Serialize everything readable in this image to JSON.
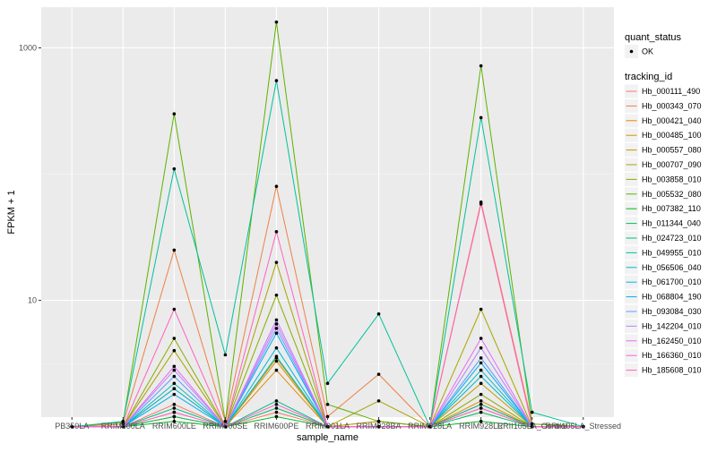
{
  "chart_data": {
    "type": "line",
    "title": "",
    "xlabel": "sample_name",
    "ylabel": "FPKM + 1",
    "y_scale": "log10",
    "ylim": [
      1.19,
      2100
    ],
    "yticks": [
      {
        "value": 10,
        "label": "10"
      },
      {
        "value": 1000,
        "label": "1000"
      }
    ],
    "grid": true,
    "categories": [
      "PB350LA",
      "RRIM600LA",
      "RRIM600LE",
      "RRIM600SE",
      "RRIM600PE",
      "RRIM901LA",
      "RRIM928BA",
      "RRIM928LA",
      "RRIM928LE",
      "RRII105LA_Control",
      "RRII105LA_Stressed"
    ],
    "legend_points": {
      "title": "quant_status",
      "entries": [
        "OK"
      ]
    },
    "series": [
      {
        "name": "Hb_000111_490",
        "color": "#F8766D",
        "values": [
          1,
          1,
          1.5,
          1,
          1.3,
          1,
          1,
          1,
          1.5,
          1,
          1
        ]
      },
      {
        "name": "Hb_000343_070",
        "color": "#EE8044",
        "values": [
          1,
          1.05,
          25,
          1.1,
          80,
          1.2,
          2.6,
          1,
          60,
          1.05,
          1
        ]
      },
      {
        "name": "Hb_000421_040",
        "color": "#E38900",
        "values": [
          1,
          1,
          1.3,
          1,
          2.8,
          1,
          1.1,
          1,
          1.6,
          1,
          1
        ]
      },
      {
        "name": "Hb_000485_100",
        "color": "#D39200",
        "values": [
          1,
          1,
          1.2,
          1,
          3.3,
          1,
          1,
          1,
          1.4,
          1,
          1
        ]
      },
      {
        "name": "Hb_000557_080",
        "color": "#C09B00",
        "values": [
          1,
          1,
          2,
          1,
          3.5,
          1,
          1.1,
          1,
          2.2,
          1,
          1
        ]
      },
      {
        "name": "Hb_000707_090",
        "color": "#A8A400",
        "values": [
          1,
          1,
          4,
          1,
          20,
          1,
          1.6,
          1,
          8.5,
          1,
          1
        ]
      },
      {
        "name": "Hb_003858_010",
        "color": "#8AAB00",
        "values": [
          1,
          1,
          5,
          1,
          11,
          1,
          1,
          1,
          1.8,
          1,
          1
        ]
      },
      {
        "name": "Hb_005532_080",
        "color": "#5BB300",
        "values": [
          1,
          1.08,
          300,
          1.1,
          1600,
          1.5,
          1.1,
          1,
          720,
          1.05,
          1
        ]
      },
      {
        "name": "Hb_007382_110",
        "color": "#00B81F",
        "values": [
          1,
          1,
          1.1,
          1,
          1.2,
          1,
          1,
          1,
          1.1,
          1,
          1
        ]
      },
      {
        "name": "Hb_011344_040",
        "color": "#00BC59",
        "values": [
          1,
          1,
          1.2,
          1,
          1.4,
          1,
          1,
          1,
          1.3,
          1,
          1
        ]
      },
      {
        "name": "Hb_024723_010",
        "color": "#00BF7D",
        "values": [
          1,
          1,
          1.4,
          1,
          1.6,
          1,
          1,
          1,
          1.5,
          1,
          1
        ]
      },
      {
        "name": "Hb_049955_010",
        "color": "#00C19C",
        "values": [
          1,
          1.1,
          110,
          3.7,
          550,
          2.2,
          7.8,
          1,
          280,
          1.3,
          1
        ]
      },
      {
        "name": "Hb_056506_040",
        "color": "#00BDBF",
        "values": [
          1,
          1,
          2.2,
          1,
          3.6,
          1,
          1,
          1,
          2.8,
          1,
          1
        ]
      },
      {
        "name": "Hb_061700_010",
        "color": "#00B8DB",
        "values": [
          1,
          1,
          2,
          1,
          4.2,
          1,
          1,
          1,
          2.5,
          1,
          1
        ]
      },
      {
        "name": "Hb_068804_190",
        "color": "#00AEF5",
        "values": [
          1,
          1,
          1.8,
          1,
          5.5,
          1,
          1,
          1,
          3.2,
          1,
          1
        ]
      },
      {
        "name": "Hb_093084_030",
        "color": "#619CFF",
        "values": [
          1,
          1,
          2.5,
          1,
          6,
          1,
          1,
          1,
          3.5,
          1,
          1
        ]
      },
      {
        "name": "Hb_142204_010",
        "color": "#B385FF",
        "values": [
          1,
          1,
          2.8,
          1,
          7,
          1,
          1,
          1,
          4.2,
          1,
          1
        ]
      },
      {
        "name": "Hb_162450_010",
        "color": "#E76BF3",
        "values": [
          1,
          1,
          3,
          1,
          6.5,
          1,
          1,
          1,
          5,
          1,
          1
        ]
      },
      {
        "name": "Hb_166360_010",
        "color": "#FA62DB",
        "values": [
          1,
          1,
          1.3,
          1,
          1.5,
          1,
          1,
          1,
          1.4,
          1,
          1
        ]
      },
      {
        "name": "Hb_185608_010",
        "color": "#FF62BC",
        "values": [
          1,
          1,
          8.5,
          1,
          35,
          1,
          1,
          1,
          58,
          1,
          1
        ]
      }
    ]
  }
}
